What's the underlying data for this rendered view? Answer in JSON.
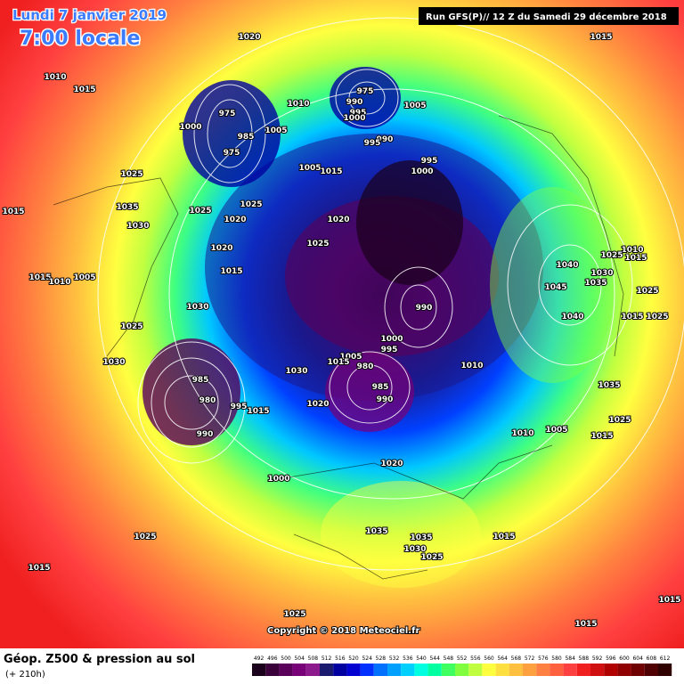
{
  "title": "Lundi 7 janvier 2019",
  "subtitle": "7:00 locale",
  "run": "Run GFS(P)// 12 Z du Samedi 29 décembre 2018",
  "copyright": "Copyright © 2018 Meteociel.fr",
  "footer": {
    "title": "Géop. Z500 & pression au sol",
    "lead": "(+ 210h)"
  },
  "colorbar": {
    "values": [
      492,
      496,
      500,
      504,
      508,
      512,
      516,
      520,
      524,
      528,
      532,
      536,
      540,
      544,
      548,
      552,
      556,
      560,
      564,
      568,
      572,
      576,
      580,
      584,
      588,
      592,
      596,
      600,
      604,
      608,
      612
    ],
    "colors": [
      "#1a001a",
      "#3a003a",
      "#5a005a",
      "#780078",
      "#8c1a8c",
      "#1a1a6e",
      "#0000a0",
      "#0000d0",
      "#0030ff",
      "#0070ff",
      "#00a0ff",
      "#00d0ff",
      "#00ffe0",
      "#00ffa0",
      "#40ff60",
      "#80ff40",
      "#c0ff40",
      "#ffff40",
      "#ffe040",
      "#ffc040",
      "#ffa040",
      "#ff8040",
      "#ff6040",
      "#ff4040",
      "#f02020",
      "#d01010",
      "#b00000",
      "#900000",
      "#700000",
      "#500000",
      "#300000"
    ]
  },
  "isobar_labels": [
    "1020",
    "1015",
    "1010",
    "1015",
    "975",
    "990",
    "995",
    "1000",
    "1005",
    "1010",
    "975",
    "1000",
    "985",
    "1005",
    "975",
    "990",
    "995",
    "995",
    "1000",
    "1005",
    "1015",
    "1025",
    "1035",
    "1030",
    "1025",
    "1025",
    "1020",
    "1020",
    "1025",
    "1020",
    "1015",
    "1015",
    "1010",
    "1005",
    "1015",
    "1010",
    "1015",
    "1025",
    "1040",
    "1030",
    "1035",
    "1045",
    "1025",
    "990",
    "1030",
    "1025",
    "1040",
    "1015",
    "1025",
    "1000",
    "995",
    "1005",
    "1015",
    "980",
    "1010",
    "1030",
    "1030",
    "985",
    "985",
    "990",
    "1020",
    "1035",
    "980",
    "995",
    "1015",
    "990",
    "1010",
    "1005",
    "1015",
    "1025",
    "1020",
    "1000",
    "1025",
    "1035",
    "1035",
    "1030",
    "1025",
    "1015",
    "1015",
    "1015",
    "1025",
    "1015"
  ]
}
